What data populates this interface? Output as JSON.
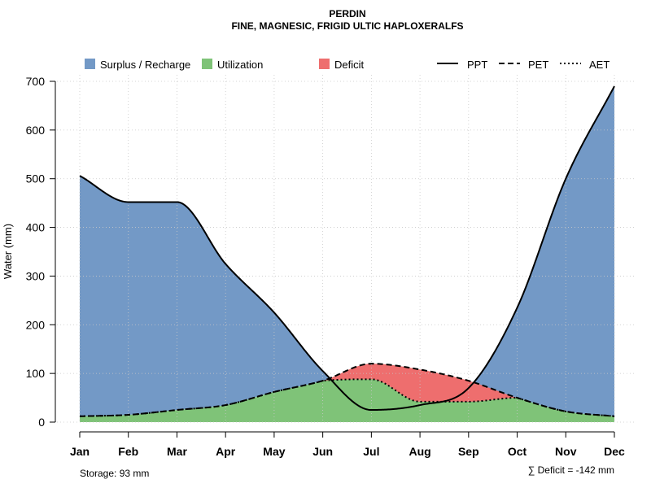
{
  "chart_data": {
    "type": "area",
    "title": "PERDIN",
    "subtitle": "FINE, MAGNESIC, FRIGID ULTIC HAPLOXERALFS",
    "ylabel": "Water (mm)",
    "xlabel": "",
    "ylim": [
      0,
      700
    ],
    "y_ticks": [
      "0",
      "100",
      "200",
      "300",
      "400",
      "500",
      "600",
      "700"
    ],
    "y_tick_values": [
      0,
      100,
      200,
      300,
      400,
      500,
      600,
      700
    ],
    "categories": [
      "Jan",
      "Feb",
      "Mar",
      "Apr",
      "May",
      "Jun",
      "Jul",
      "Aug",
      "Sep",
      "Oct",
      "Nov",
      "Dec"
    ],
    "grid": true,
    "series": [
      {
        "name": "PPT",
        "style": "solid",
        "values": [
          506,
          452,
          452,
          325,
          225,
          105,
          25,
          35,
          70,
          235,
          500,
          690
        ]
      },
      {
        "name": "PET",
        "style": "dashed",
        "values": [
          12,
          15,
          25,
          35,
          62,
          85,
          120,
          108,
          85,
          50,
          22,
          12
        ]
      },
      {
        "name": "AET",
        "style": "dotted",
        "values": [
          12,
          15,
          25,
          35,
          62,
          85,
          88,
          42,
          42,
          50,
          22,
          12
        ]
      }
    ],
    "legend": {
      "fills": [
        {
          "label": "Surplus / Recharge",
          "color": "#7399C6"
        },
        {
          "label": "Utilization",
          "color": "#7FC378"
        },
        {
          "label": "Deficit",
          "color": "#EE6E6E"
        }
      ],
      "lines": [
        {
          "label": "PPT",
          "style": "solid"
        },
        {
          "label": "PET",
          "style": "dashed"
        },
        {
          "label": "AET",
          "style": "dotted"
        }
      ],
      "position": "top"
    },
    "annotations": {
      "storage": "Storage: 93 mm",
      "deficit": "∑ Deficit = -142 mm"
    }
  }
}
